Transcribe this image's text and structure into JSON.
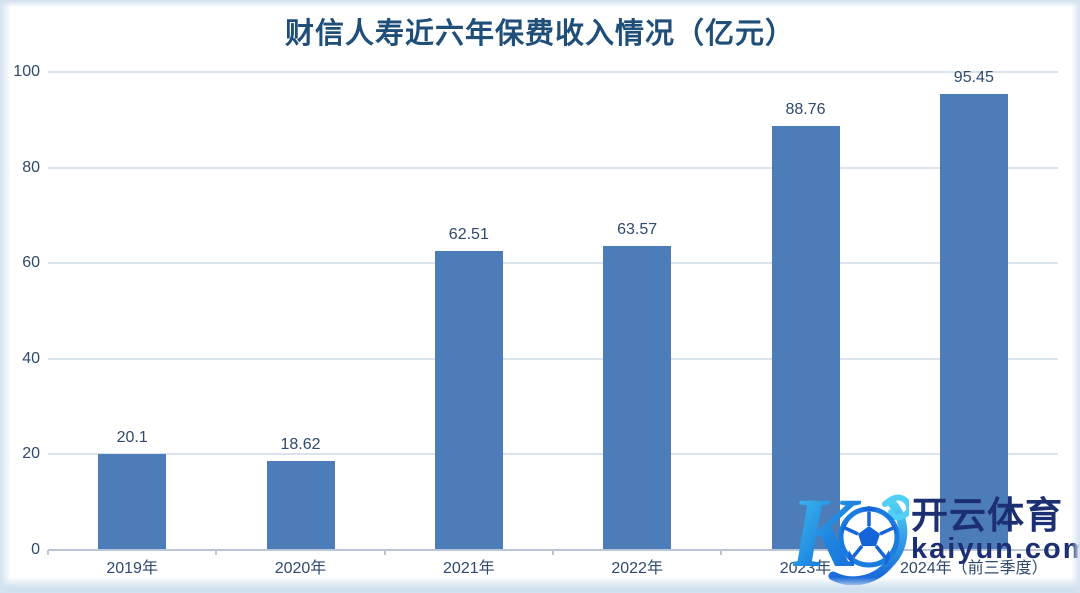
{
  "chart_data": {
    "type": "bar",
    "title": "财信人寿近六年保费收入情况（亿元）",
    "categories": [
      "2019年",
      "2020年",
      "2021年",
      "2022年",
      "2023年",
      "2024年（前三季度）"
    ],
    "values": [
      20.1,
      18.62,
      62.51,
      63.57,
      88.76,
      95.45
    ],
    "data_labels": [
      "20.1",
      "18.62",
      "62.51",
      "63.57",
      "88.76",
      "95.45"
    ],
    "xlabel": "",
    "ylabel": "",
    "ylim": [
      0,
      100
    ],
    "yticks": [
      0,
      20,
      40,
      60,
      80,
      100
    ],
    "grid": true,
    "legend": false,
    "bar_color": "#4d7db8",
    "label_color": "#2e4a6c",
    "title_color": "#1f4e79",
    "gridline_color": "#dbe3ec",
    "axis_line_color": "#b9c6d6"
  },
  "watermark": {
    "logo": "kaiyun-k-football-logo",
    "brand_cn": "开云体育",
    "brand_domain": "kaiyun.com",
    "text_color": "#1b2f72",
    "logo_gradient_start": "#45c8f2",
    "logo_gradient_end": "#1565d8"
  }
}
